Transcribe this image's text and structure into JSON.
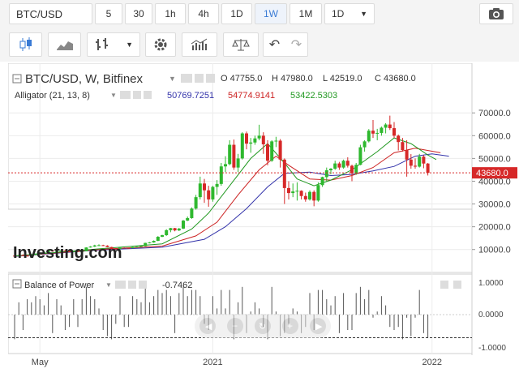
{
  "toolbar": {
    "symbol": "BTC/USD",
    "intervals": [
      "5",
      "30",
      "1h",
      "4h",
      "1D",
      "1W",
      "1M",
      "1D"
    ],
    "active_interval": "1W"
  },
  "chart_title": "BTC/USD, W, Bitfinex",
  "ohlc": {
    "o_label": "O",
    "o": "47755.0",
    "h_label": "H",
    "h": "47980.0",
    "l_label": "L",
    "l": "42519.0",
    "c_label": "C",
    "c": "43680.0"
  },
  "alligator": {
    "label": "Alligator (21, 13, 8)",
    "jaw": "50769.7251",
    "teeth": "54774.9141",
    "lips": "53422.5303",
    "jaw_color": "#3333aa",
    "teeth_color": "#cc2222",
    "lips_color": "#229922"
  },
  "last_price_tag": "43680.0",
  "watermark": "Investing.com",
  "bop": {
    "label": "Balance of Power",
    "value": "-0.7462",
    "axis_labels": [
      "1.0000",
      "0.0000",
      "-1.0000"
    ]
  },
  "colors": {
    "up": "#2eb82e",
    "down": "#d62828",
    "price_line": "#d62828"
  },
  "chart_data": {
    "type": "candlestick",
    "title": "BTC/USD, W, Bitfinex",
    "y_ticks": [
      "70000.0",
      "60000.0",
      "50000.0",
      "40000.0",
      "30000.0",
      "20000.0",
      "10000.0"
    ],
    "y_tick_values": [
      70000,
      60000,
      50000,
      40000,
      30000,
      20000,
      10000
    ],
    "ylim": [
      1000,
      74000
    ],
    "x_ticks": [
      "May",
      "2021",
      "2022"
    ],
    "x_tick_index": [
      6,
      47,
      99
    ],
    "last_price": 43680,
    "candles": [
      [
        7300,
        7600,
        6800,
        7100
      ],
      [
        7100,
        7700,
        6900,
        7500
      ],
      [
        7500,
        7900,
        7200,
        7300
      ],
      [
        7300,
        7600,
        7000,
        7200
      ],
      [
        7200,
        7800,
        7000,
        7700
      ],
      [
        7700,
        8300,
        7500,
        8200
      ],
      [
        8200,
        8700,
        7900,
        8600
      ],
      [
        8600,
        9000,
        8300,
        8800
      ],
      [
        8800,
        9700,
        8600,
        9600
      ],
      [
        9600,
        9900,
        9000,
        9200
      ],
      [
        9200,
        9600,
        8900,
        9400
      ],
      [
        9400,
        9800,
        9100,
        9500
      ],
      [
        9500,
        9800,
        9200,
        9300
      ],
      [
        9300,
        9600,
        9000,
        9200
      ],
      [
        9200,
        9500,
        8900,
        9300
      ],
      [
        9300,
        9600,
        9000,
        9200
      ],
      [
        9200,
        9500,
        9000,
        9300
      ],
      [
        9300,
        11000,
        9200,
        10900
      ],
      [
        10900,
        11500,
        10800,
        11300
      ],
      [
        11300,
        12100,
        11100,
        11800
      ],
      [
        11800,
        12300,
        11500,
        11900
      ],
      [
        11900,
        12100,
        11600,
        11700
      ],
      [
        11700,
        11900,
        11000,
        11100
      ],
      [
        11100,
        11200,
        10300,
        10400
      ],
      [
        10400,
        10500,
        10200,
        10300
      ],
      [
        10300,
        10900,
        10200,
        10800
      ],
      [
        10800,
        10900,
        10500,
        10700
      ],
      [
        10700,
        10800,
        10500,
        10600
      ],
      [
        10600,
        11200,
        10500,
        11100
      ],
      [
        11100,
        11400,
        10900,
        11300
      ],
      [
        11300,
        11700,
        11200,
        11500
      ],
      [
        11500,
        13000,
        11400,
        12900
      ],
      [
        12900,
        13300,
        12700,
        13100
      ],
      [
        13100,
        14000,
        13000,
        13800
      ],
      [
        13800,
        15900,
        13700,
        15600
      ],
      [
        15600,
        16500,
        15400,
        16300
      ],
      [
        16300,
        18900,
        16000,
        18500
      ],
      [
        18500,
        19500,
        17600,
        19400
      ],
      [
        19400,
        19500,
        18000,
        18400
      ],
      [
        18400,
        19500,
        18100,
        19200
      ],
      [
        19200,
        23000,
        19000,
        22700
      ],
      [
        22700,
        24500,
        22500,
        23800
      ],
      [
        23800,
        28500,
        23500,
        28000
      ],
      [
        28000,
        34000,
        27500,
        33000
      ],
      [
        33000,
        42000,
        32000,
        39000
      ],
      [
        39000,
        41000,
        30500,
        36000
      ],
      [
        36000,
        38000,
        28800,
        32000
      ],
      [
        32000,
        38000,
        31000,
        37500
      ],
      [
        37500,
        40500,
        34000,
        38800
      ],
      [
        38800,
        48000,
        38000,
        46500
      ],
      [
        46500,
        51000,
        44000,
        47500
      ],
      [
        47500,
        58000,
        47000,
        56000
      ],
      [
        56000,
        58300,
        45000,
        46000
      ],
      [
        46000,
        52000,
        44000,
        50000
      ],
      [
        50000,
        61500,
        49500,
        61000
      ],
      [
        61000,
        61800,
        54000,
        56500
      ],
      [
        56500,
        59000,
        52500,
        57000
      ],
      [
        57000,
        60000,
        56000,
        58800
      ],
      [
        58800,
        64800,
        58000,
        60000
      ],
      [
        60000,
        61500,
        52000,
        56200
      ],
      [
        56200,
        58000,
        47000,
        49000
      ],
      [
        49000,
        58000,
        48500,
        57500
      ],
      [
        57500,
        59500,
        55000,
        57800
      ],
      [
        57800,
        58500,
        46000,
        49500
      ],
      [
        49500,
        50000,
        30000,
        37000
      ],
      [
        37000,
        40000,
        32000,
        34800
      ],
      [
        34800,
        39000,
        33000,
        35500
      ],
      [
        35500,
        39500,
        31500,
        35800
      ],
      [
        35800,
        36000,
        32000,
        33500
      ],
      [
        33500,
        35000,
        31000,
        32000
      ],
      [
        32000,
        36000,
        31500,
        35300
      ],
      [
        35300,
        36000,
        29000,
        31500
      ],
      [
        31500,
        39500,
        31000,
        38300
      ],
      [
        38300,
        42000,
        37500,
        41800
      ],
      [
        41800,
        46000,
        40000,
        44800
      ],
      [
        44800,
        45800,
        43000,
        45500
      ],
      [
        45500,
        49000,
        45000,
        47800
      ],
      [
        47800,
        48500,
        45000,
        46000
      ],
      [
        46000,
        49500,
        45500,
        49000
      ],
      [
        49000,
        50500,
        46000,
        46800
      ],
      [
        46800,
        47300,
        40000,
        43500
      ],
      [
        43500,
        48000,
        42800,
        47200
      ],
      [
        47200,
        56000,
        47000,
        54900
      ],
      [
        54900,
        58000,
        53000,
        57500
      ],
      [
        57500,
        62900,
        57000,
        62200
      ],
      [
        62200,
        66900,
        59000,
        60900
      ],
      [
        60900,
        63000,
        58000,
        61200
      ],
      [
        61200,
        64000,
        60000,
        63500
      ],
      [
        63500,
        65500,
        61000,
        64900
      ],
      [
        64900,
        68800,
        62500,
        63300
      ],
      [
        63300,
        66000,
        59000,
        60000
      ],
      [
        60000,
        60500,
        53500,
        57200
      ],
      [
        57200,
        59000,
        53000,
        53700
      ],
      [
        53700,
        58000,
        42000,
        49500
      ],
      [
        49500,
        51900,
        45500,
        46800
      ],
      [
        46800,
        50000,
        45500,
        46400
      ],
      [
        46400,
        52000,
        46000,
        50800
      ],
      [
        50800,
        51500,
        45700,
        47755
      ],
      [
        47755,
        47980,
        42519,
        43680
      ]
    ],
    "bop_values": [
      -0.8,
      0.4,
      -0.5,
      0.5,
      0.4,
      0.6,
      0.5,
      0.3,
      0.7,
      -0.6,
      0.5,
      0.3,
      -0.5,
      -0.4,
      0.5,
      -0.4,
      0.5,
      0.9,
      0.6,
      0.5,
      0.2,
      -0.5,
      -0.7,
      -0.8,
      -0.3,
      0.6,
      -0.4,
      -0.4,
      0.6,
      0.5,
      0.4,
      0.9,
      0.4,
      0.6,
      0.8,
      0.7,
      0.8,
      0.6,
      -0.6,
      0.7,
      0.9,
      0.6,
      0.8,
      0.8,
      0.6,
      -0.3,
      -0.5,
      0.6,
      0.2,
      0.8,
      0.2,
      0.8,
      -0.8,
      0.4,
      0.9,
      -0.6,
      0.1,
      0.4,
      0.2,
      -0.4,
      -0.8,
      0.9,
      0.1,
      -0.7,
      -0.6,
      -0.3,
      0.2,
      0.1,
      -0.6,
      -0.4,
      0.7,
      -0.5,
      0.8,
      0.8,
      0.5,
      0.3,
      0.6,
      -0.6,
      0.7,
      -0.5,
      -0.5,
      0.7,
      0.9,
      0.5,
      0.8,
      -0.1,
      0.1,
      0.6,
      0.3,
      -0.4,
      -0.5,
      -0.4,
      -0.8,
      -0.1,
      -0.7,
      -0.1,
      0.8,
      -0.6,
      -0.75
    ],
    "alligator_lines": [
      {
        "name": "jaw",
        "color": "#3333aa",
        "points": [
          [
            0,
            7000
          ],
          [
            20,
            9800
          ],
          [
            35,
            11000
          ],
          [
            45,
            14500
          ],
          [
            50,
            20000
          ],
          [
            55,
            28000
          ],
          [
            60,
            37500
          ],
          [
            64,
            43500
          ],
          [
            70,
            44000
          ],
          [
            75,
            42500
          ],
          [
            80,
            43000
          ],
          [
            85,
            44500
          ],
          [
            90,
            46500
          ],
          [
            95,
            51000
          ],
          [
            99,
            52000
          ],
          [
            103,
            51000
          ]
        ]
      },
      {
        "name": "teeth",
        "color": "#cc2222",
        "points": [
          [
            0,
            7100
          ],
          [
            20,
            10000
          ],
          [
            35,
            11500
          ],
          [
            43,
            16000
          ],
          [
            48,
            22000
          ],
          [
            53,
            34000
          ],
          [
            58,
            45000
          ],
          [
            62,
            51000
          ],
          [
            65,
            47000
          ],
          [
            70,
            41000
          ],
          [
            75,
            40500
          ],
          [
            80,
            42500
          ],
          [
            85,
            46000
          ],
          [
            90,
            52500
          ],
          [
            95,
            54500
          ],
          [
            101,
            52500
          ]
        ]
      },
      {
        "name": "lips",
        "color": "#229922",
        "points": [
          [
            0,
            7200
          ],
          [
            20,
            10300
          ],
          [
            35,
            12500
          ],
          [
            42,
            19000
          ],
          [
            46,
            26000
          ],
          [
            51,
            38000
          ],
          [
            56,
            50000
          ],
          [
            60,
            56500
          ],
          [
            64,
            48000
          ],
          [
            67,
            41000
          ],
          [
            71,
            38000
          ],
          [
            75,
            40500
          ],
          [
            80,
            45000
          ],
          [
            86,
            53000
          ],
          [
            90,
            59000
          ],
          [
            94,
            56500
          ],
          [
            98,
            51500
          ],
          [
            100,
            49500
          ]
        ]
      }
    ]
  }
}
